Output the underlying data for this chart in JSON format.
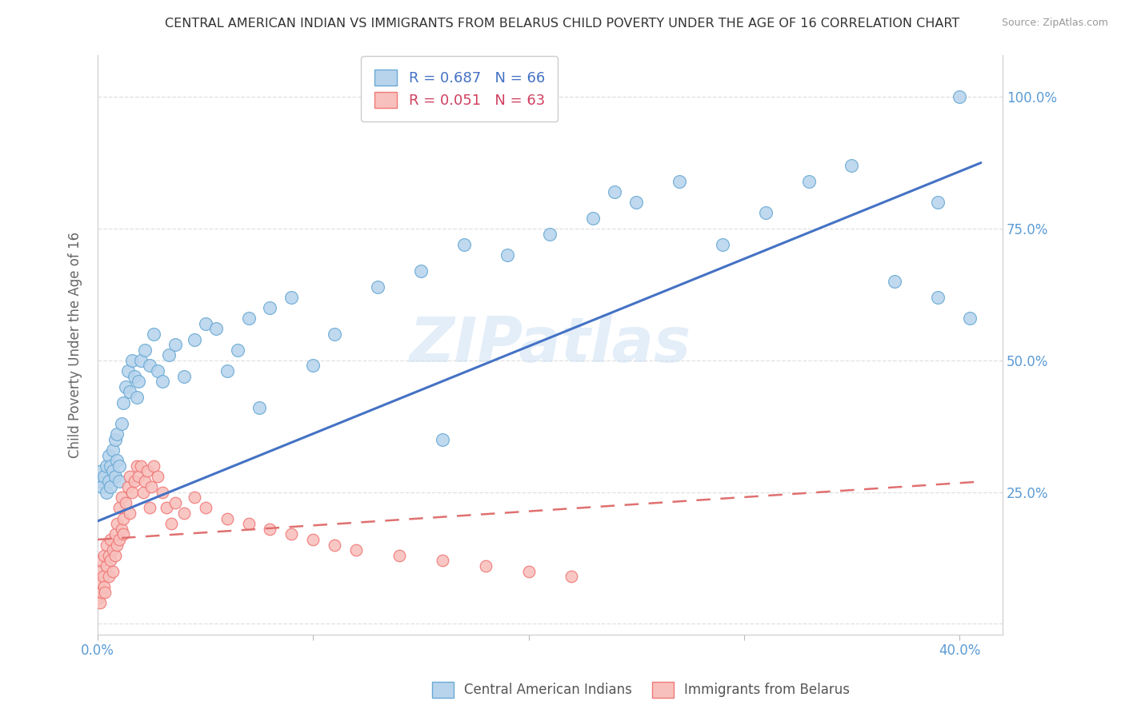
{
  "title": "CENTRAL AMERICAN INDIAN VS IMMIGRANTS FROM BELARUS CHILD POVERTY UNDER THE AGE OF 16 CORRELATION CHART",
  "source": "Source: ZipAtlas.com",
  "ylabel": "Child Poverty Under the Age of 16",
  "xlim": [
    0.0,
    0.42
  ],
  "ylim": [
    -0.02,
    1.08
  ],
  "xtick_positions": [
    0.0,
    0.1,
    0.2,
    0.3,
    0.4
  ],
  "xticklabels": [
    "0.0%",
    "",
    "",
    "",
    "40.0%"
  ],
  "ytick_positions": [
    0.0,
    0.25,
    0.5,
    0.75,
    1.0
  ],
  "yticklabels_right": [
    "",
    "25.0%",
    "50.0%",
    "75.0%",
    "100.0%"
  ],
  "legend1_label": "R = 0.687   N = 66",
  "legend2_label": "R = 0.051   N = 63",
  "watermark": "ZIPatlas",
  "blue_line_x": [
    0.0,
    0.41
  ],
  "blue_line_y": [
    0.195,
    0.875
  ],
  "pink_line_x": [
    0.0,
    0.41
  ],
  "pink_line_y": [
    0.16,
    0.27
  ],
  "blue_scatter_x": [
    0.001,
    0.002,
    0.002,
    0.003,
    0.004,
    0.004,
    0.005,
    0.005,
    0.006,
    0.006,
    0.007,
    0.007,
    0.008,
    0.008,
    0.009,
    0.009,
    0.01,
    0.01,
    0.011,
    0.012,
    0.013,
    0.014,
    0.015,
    0.016,
    0.017,
    0.018,
    0.019,
    0.02,
    0.022,
    0.024,
    0.026,
    0.028,
    0.03,
    0.033,
    0.036,
    0.04,
    0.045,
    0.05,
    0.055,
    0.06,
    0.065,
    0.07,
    0.08,
    0.09,
    0.1,
    0.11,
    0.13,
    0.15,
    0.17,
    0.19,
    0.21,
    0.23,
    0.25,
    0.27,
    0.29,
    0.31,
    0.33,
    0.35,
    0.37,
    0.39,
    0.4,
    0.405,
    0.39,
    0.24,
    0.16,
    0.075
  ],
  "blue_scatter_y": [
    0.27,
    0.29,
    0.26,
    0.28,
    0.25,
    0.3,
    0.27,
    0.32,
    0.3,
    0.26,
    0.29,
    0.33,
    0.28,
    0.35,
    0.31,
    0.36,
    0.3,
    0.27,
    0.38,
    0.42,
    0.45,
    0.48,
    0.44,
    0.5,
    0.47,
    0.43,
    0.46,
    0.5,
    0.52,
    0.49,
    0.55,
    0.48,
    0.46,
    0.51,
    0.53,
    0.47,
    0.54,
    0.57,
    0.56,
    0.48,
    0.52,
    0.58,
    0.6,
    0.62,
    0.49,
    0.55,
    0.64,
    0.67,
    0.72,
    0.7,
    0.74,
    0.77,
    0.8,
    0.84,
    0.72,
    0.78,
    0.84,
    0.87,
    0.65,
    0.62,
    1.0,
    0.58,
    0.8,
    0.82,
    0.35,
    0.41
  ],
  "pink_scatter_x": [
    0.0005,
    0.001,
    0.001,
    0.0015,
    0.002,
    0.002,
    0.0025,
    0.003,
    0.003,
    0.0035,
    0.004,
    0.004,
    0.005,
    0.005,
    0.006,
    0.006,
    0.007,
    0.007,
    0.008,
    0.008,
    0.009,
    0.009,
    0.01,
    0.01,
    0.011,
    0.011,
    0.012,
    0.012,
    0.013,
    0.014,
    0.015,
    0.015,
    0.016,
    0.017,
    0.018,
    0.019,
    0.02,
    0.021,
    0.022,
    0.023,
    0.024,
    0.025,
    0.026,
    0.028,
    0.03,
    0.032,
    0.034,
    0.036,
    0.04,
    0.045,
    0.05,
    0.06,
    0.07,
    0.08,
    0.09,
    0.1,
    0.11,
    0.12,
    0.14,
    0.16,
    0.18,
    0.2,
    0.22
  ],
  "pink_scatter_y": [
    0.05,
    0.08,
    0.04,
    0.1,
    0.06,
    0.12,
    0.09,
    0.07,
    0.13,
    0.06,
    0.11,
    0.15,
    0.09,
    0.13,
    0.12,
    0.16,
    0.14,
    0.1,
    0.17,
    0.13,
    0.15,
    0.19,
    0.16,
    0.22,
    0.18,
    0.24,
    0.2,
    0.17,
    0.23,
    0.26,
    0.21,
    0.28,
    0.25,
    0.27,
    0.3,
    0.28,
    0.3,
    0.25,
    0.27,
    0.29,
    0.22,
    0.26,
    0.3,
    0.28,
    0.25,
    0.22,
    0.19,
    0.23,
    0.21,
    0.24,
    0.22,
    0.2,
    0.19,
    0.18,
    0.17,
    0.16,
    0.15,
    0.14,
    0.13,
    0.12,
    0.11,
    0.1,
    0.09
  ],
  "background_color": "#ffffff",
  "grid_color": "#e0e0e0",
  "title_color": "#333333",
  "axis_label_color": "#666666",
  "blue_dot_facecolor": "#b8d4ed",
  "blue_dot_edgecolor": "#6aaad4",
  "pink_dot_facecolor": "#f8c0bc",
  "pink_dot_edgecolor": "#f07878",
  "blue_line_color": "#4472c4",
  "pink_line_color": "#e07070",
  "tick_label_color": "#5b9bd5",
  "legend_text_blue": "#4472c4",
  "legend_text_pink": "#d04060",
  "bottom_legend_color": "#555555"
}
